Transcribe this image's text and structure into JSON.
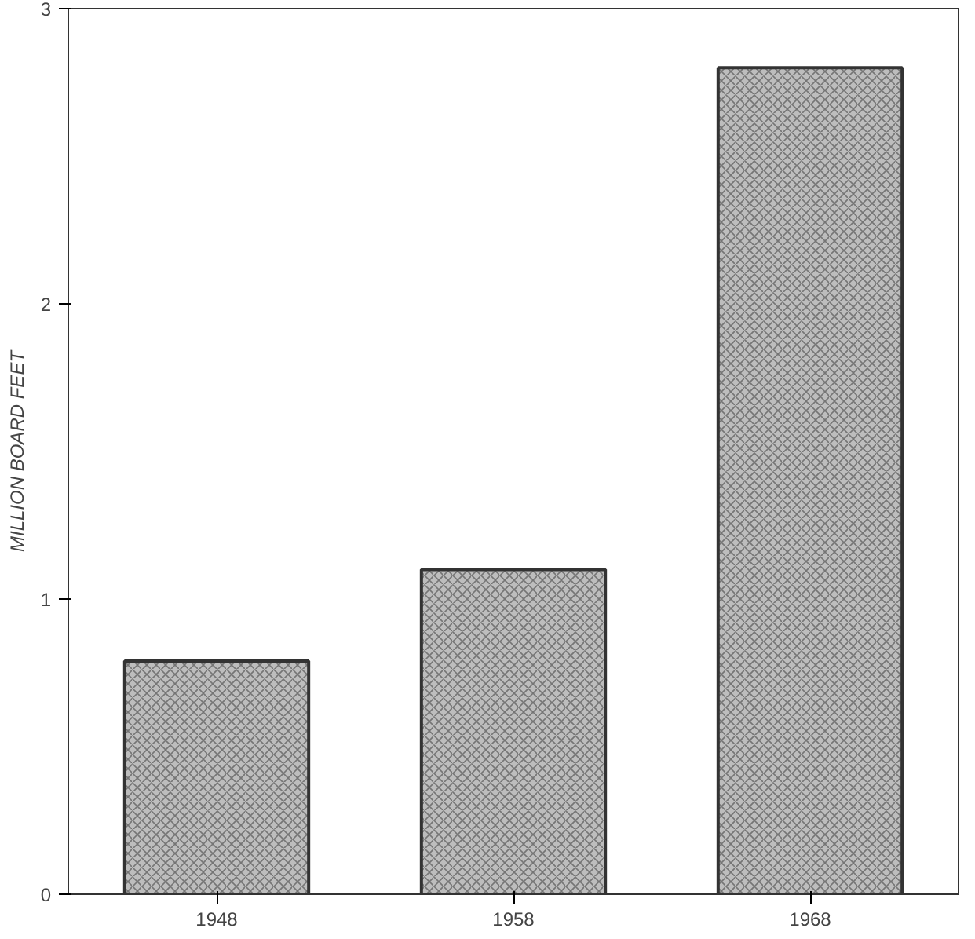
{
  "chart_data": {
    "type": "bar",
    "ylabel": "MILLION BOARD FEET",
    "categories": [
      "1948",
      "1958",
      "1968"
    ],
    "values": [
      0.79,
      1.1,
      2.8
    ],
    "color": "#bdbdbd",
    "ylim": [
      0,
      3
    ],
    "yticks": [
      0,
      1,
      2,
      3
    ],
    "grid": false
  }
}
